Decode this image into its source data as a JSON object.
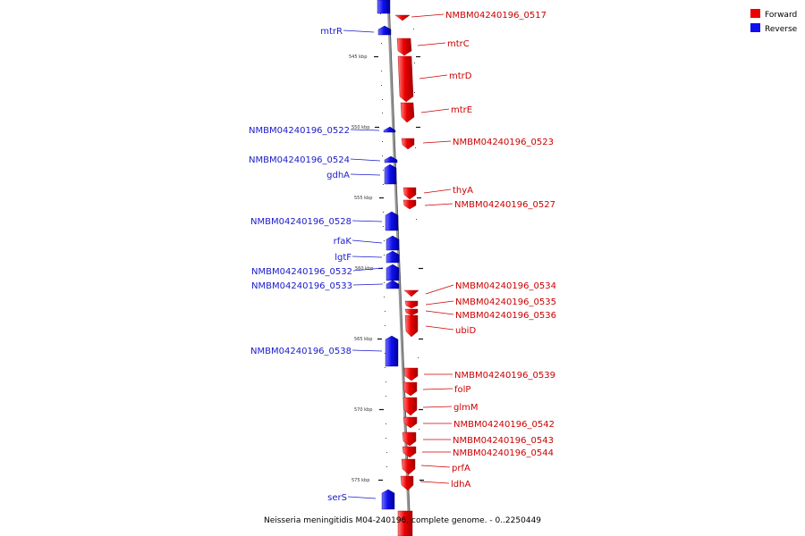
{
  "caption": "Neisseria meningitidis M04-240196, complete genome. - 0..2250449",
  "legend": [
    {
      "label": "Forward",
      "color": "#ee0000"
    },
    {
      "label": "Reverse",
      "color": "#1010ee"
    }
  ],
  "kbp_marks": [
    "545 kbp",
    "550 kbp",
    "555 kbp",
    "560 kbp",
    "565 kbp",
    "570 kbp",
    "575 kbp"
  ],
  "forward_genes": [
    {
      "name": "NMBM04240196_0517",
      "kbp": 542.4
    },
    {
      "name": "mtrC",
      "kbp": 543.7
    },
    {
      "name": "mtrD",
      "kbp": 546.8
    },
    {
      "name": "mtrE",
      "kbp": 548.6
    },
    {
      "name": "NMBM04240196_0523",
      "kbp": 550.9
    },
    {
      "name": "thyA",
      "kbp": 554.4
    },
    {
      "name": "NMBM04240196_0527",
      "kbp": 555.2
    },
    {
      "name": "NMBM04240196_0534",
      "kbp": 561.3
    },
    {
      "name": "NMBM04240196_0535",
      "kbp": 562.0
    },
    {
      "name": "NMBM04240196_0536",
      "kbp": 562.5
    },
    {
      "name": "ubiD",
      "kbp": 563.9
    },
    {
      "name": "NMBM04240196_0539",
      "kbp": 567.5
    },
    {
      "name": "folP",
      "kbp": 568.5
    },
    {
      "name": "glmM",
      "kbp": 569.9
    },
    {
      "name": "NMBM04240196_0542",
      "kbp": 571.1
    },
    {
      "name": "NMBM04240196_0543",
      "kbp": 572.2
    },
    {
      "name": "NMBM04240196_0544",
      "kbp": 573.1
    },
    {
      "name": "prfA",
      "kbp": 574.2
    },
    {
      "name": "ldhA",
      "kbp": 575.4
    }
  ],
  "reverse_genes": [
    {
      "name": "mtrR",
      "kbp": 543.4
    },
    {
      "name": "NMBM04240196_0522",
      "kbp": 550.3
    },
    {
      "name": "NMBM04240196_0524",
      "kbp": 552.3
    },
    {
      "name": "gdhA",
      "kbp": 553.3
    },
    {
      "name": "NMBM04240196_0528",
      "kbp": 557.1
    },
    {
      "name": "rfaK",
      "kbp": 558.5
    },
    {
      "name": "lgtF",
      "kbp": 559.5
    },
    {
      "name": "NMBM04240196_0532",
      "kbp": 560.7
    },
    {
      "name": "NMBM04240196_0533",
      "kbp": 561.3
    },
    {
      "name": "NMBM04240196_0538",
      "kbp": 566.2
    },
    {
      "name": "serS",
      "kbp": 576.6
    }
  ]
}
